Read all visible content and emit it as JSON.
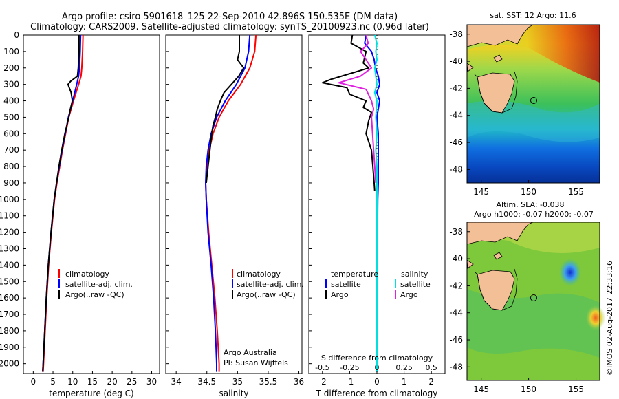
{
  "header": {
    "title_line1": "Argo profile: csiro 5901618_125 22-Sep-2010 42.896S 150.535E (DM data)",
    "title_line2": "Climatology: CARS2009. Satellite-adjusted climatology: synTS_20100923.nc (0.96d later)"
  },
  "maps": {
    "sst_title": "sat. SST: 12 Argo: 11.6",
    "sla_title1": "Altim. SLA: -0.038",
    "sla_title2": "Argo h1000: -0.07 h2000: -0.07",
    "lat_ticks": [
      "-38",
      "-40",
      "-42",
      "-44",
      "-46",
      "-48"
    ],
    "lon_ticks": [
      "145",
      "150",
      "155"
    ],
    "argo_position": {
      "lon": 150.535,
      "lat": -42.896
    },
    "colors": {
      "land": "#f3bf96",
      "coast": "#000000"
    }
  },
  "stamp": "©IMOS 02-Aug-2017 22:33:16",
  "depth_ticks": [
    "0",
    "100",
    "200",
    "300",
    "400",
    "500",
    "600",
    "700",
    "800",
    "900",
    "1000",
    "1100",
    "1200",
    "1300",
    "1400",
    "1500",
    "1600",
    "1700",
    "1800",
    "1900",
    "2000"
  ],
  "annotation": {
    "line1": "Argo Australia",
    "line2": "PI: Susan Wijffels"
  },
  "colors": {
    "climatology": "#ff0000",
    "satellite": "#0000ff",
    "argo": "#000000",
    "sal_satellite": "#00e0e0",
    "sal_argo": "#e020e0"
  },
  "chart_data": [
    {
      "type": "line",
      "xlabel": "temperature (deg C)",
      "xticks": [
        "0",
        "5",
        "10",
        "15",
        "20",
        "25",
        "30"
      ],
      "xlim": [
        -2.5,
        32
      ],
      "ylim": [
        2060,
        0
      ],
      "legend": [
        "climatology",
        "satellite-adj. clim.",
        "Argo(..raw -QC)"
      ],
      "series": [
        {
          "name": "climatology",
          "y": [
            0,
            100,
            200,
            250,
            300,
            400,
            500,
            600,
            700,
            800,
            900,
            1000,
            1200,
            1400,
            1600,
            1800,
            2000,
            2050
          ],
          "x": [
            12.6,
            12.5,
            12.3,
            12.1,
            11.5,
            10.2,
            9.0,
            8.2,
            7.4,
            6.7,
            6.0,
            5.4,
            4.6,
            3.9,
            3.4,
            3.0,
            2.6,
            2.5
          ]
        },
        {
          "name": "satellite-adj. clim.",
          "y": [
            0,
            100,
            200,
            250,
            300,
            400,
            500,
            600,
            700,
            800,
            900,
            1000,
            1200,
            1400,
            1600,
            1800,
            2000,
            2050
          ],
          "x": [
            12.0,
            11.9,
            11.7,
            11.5,
            11.0,
            10.0,
            8.9,
            8.1,
            7.3,
            6.6,
            5.9,
            5.3,
            4.5,
            3.8,
            3.3,
            2.9,
            2.5,
            2.4
          ]
        },
        {
          "name": "Argo(..raw -QC)",
          "y": [
            0,
            100,
            200,
            250,
            280,
            300,
            350,
            400,
            450,
            500,
            600,
            700,
            800,
            900,
            1000,
            1200,
            1400,
            1600,
            1800,
            2000,
            2050
          ],
          "x": [
            11.6,
            11.6,
            11.4,
            11.2,
            9.5,
            8.8,
            9.6,
            9.9,
            9.4,
            9.0,
            8.0,
            7.2,
            6.5,
            5.9,
            5.3,
            4.5,
            3.8,
            3.3,
            2.9,
            2.5,
            2.4
          ]
        }
      ]
    },
    {
      "type": "line",
      "xlabel": "salinity",
      "xticks": [
        "34",
        "34.5",
        "35",
        "35.5",
        "36"
      ],
      "xlim": [
        33.83,
        36.05
      ],
      "ylim": [
        2060,
        0
      ],
      "legend": [
        "climatology",
        "satellite-adj. clim.",
        "Argo(..raw -QC)"
      ],
      "series": [
        {
          "name": "climatology",
          "y": [
            0,
            100,
            200,
            300,
            400,
            500,
            600,
            700,
            800,
            900,
            1000,
            1200,
            1400,
            1600,
            1800,
            2000,
            2050
          ],
          "x": [
            35.3,
            35.28,
            35.2,
            35.05,
            34.85,
            34.7,
            34.6,
            34.54,
            34.5,
            34.48,
            34.49,
            34.53,
            34.58,
            34.63,
            34.67,
            34.7,
            34.7
          ]
        },
        {
          "name": "satellite-adj. clim.",
          "y": [
            0,
            100,
            200,
            300,
            400,
            500,
            600,
            700,
            800,
            900,
            1000,
            1200,
            1400,
            1600,
            1800,
            2000,
            2050
          ],
          "x": [
            35.2,
            35.18,
            35.12,
            34.98,
            34.8,
            34.66,
            34.57,
            34.52,
            34.49,
            34.48,
            34.49,
            34.52,
            34.57,
            34.61,
            34.64,
            34.66,
            34.66
          ]
        },
        {
          "name": "Argo(..raw -QC)",
          "y": [
            0,
            100,
            150,
            200,
            250,
            300,
            350,
            400,
            450,
            500,
            550,
            600,
            700,
            800,
            900
          ],
          "x": [
            35.03,
            35.03,
            35.0,
            35.1,
            35.02,
            34.9,
            34.78,
            34.72,
            34.67,
            34.64,
            34.6,
            34.58,
            34.55,
            34.52,
            34.49
          ]
        }
      ]
    },
    {
      "type": "line",
      "xlabel": "T difference from climatology",
      "xlabel_top": "S difference from climatology",
      "xticks": [
        "-2",
        "-1",
        "0",
        "1",
        "2"
      ],
      "xticks_top": [
        "-0.5",
        "-0.25",
        "0",
        "0.25",
        "0.5"
      ],
      "xlim": [
        -2.5,
        2.5
      ],
      "ylim": [
        2060,
        0
      ],
      "legend_temperature_title": "temperature",
      "legend_salinity_title": "salinity",
      "legend_labels": [
        "satellite",
        "Argo",
        "satellite",
        "Argo"
      ],
      "series": [
        {
          "name": "satellite",
          "group": "temperature",
          "y": [
            0,
            50,
            100,
            150,
            200,
            250,
            300,
            350,
            400,
            450,
            500,
            600,
            700,
            800,
            900,
            1000,
            1200,
            1400,
            1600,
            1800,
            2000,
            2050
          ],
          "x": [
            -0.4,
            -0.45,
            -0.2,
            -0.1,
            -0.05,
            0.05,
            0.1,
            0.0,
            0.1,
            0.05,
            0.0,
            0.05,
            0.05,
            0.05,
            0.05,
            0.03,
            0.02,
            0.02,
            0.01,
            0.01,
            0.0,
            0.0
          ]
        },
        {
          "name": "Argo",
          "group": "temperature",
          "y": [
            0,
            50,
            100,
            170,
            200,
            270,
            290,
            320,
            360,
            400,
            440,
            470,
            520,
            600,
            700,
            800,
            900,
            950
          ],
          "x": [
            -0.9,
            -0.95,
            -0.4,
            -0.5,
            -0.3,
            -1.7,
            -2.0,
            -1.1,
            -1.0,
            -0.4,
            -0.5,
            -0.2,
            -0.3,
            -0.4,
            -0.2,
            -0.15,
            -0.1,
            -0.08
          ]
        },
        {
          "name": "satellite",
          "group": "salinity",
          "y": [
            0,
            50,
            100,
            150,
            200,
            300,
            350,
            400,
            500,
            600,
            700,
            800,
            900,
            1000,
            1200,
            1400,
            1600,
            1800,
            2000,
            2050
          ],
          "x": [
            -0.02,
            0.0,
            -0.01,
            0.0,
            -0.02,
            0.0,
            -0.02,
            0.0,
            -0.01,
            0.0,
            -0.01,
            0.0,
            0.0,
            0.0,
            0.0,
            0.0,
            0.0,
            0.0,
            0.0,
            0.0
          ]
        },
        {
          "name": "Argo",
          "group": "salinity",
          "y": [
            0,
            50,
            100,
            150,
            200,
            250,
            290,
            330,
            400,
            450,
            500,
            600,
            700,
            800,
            900
          ],
          "x": [
            -0.1,
            -0.08,
            -0.15,
            -0.1,
            -0.05,
            -0.15,
            -0.35,
            -0.1,
            -0.05,
            -0.03,
            -0.05,
            -0.04,
            -0.03,
            -0.02,
            -0.01
          ]
        }
      ]
    }
  ]
}
